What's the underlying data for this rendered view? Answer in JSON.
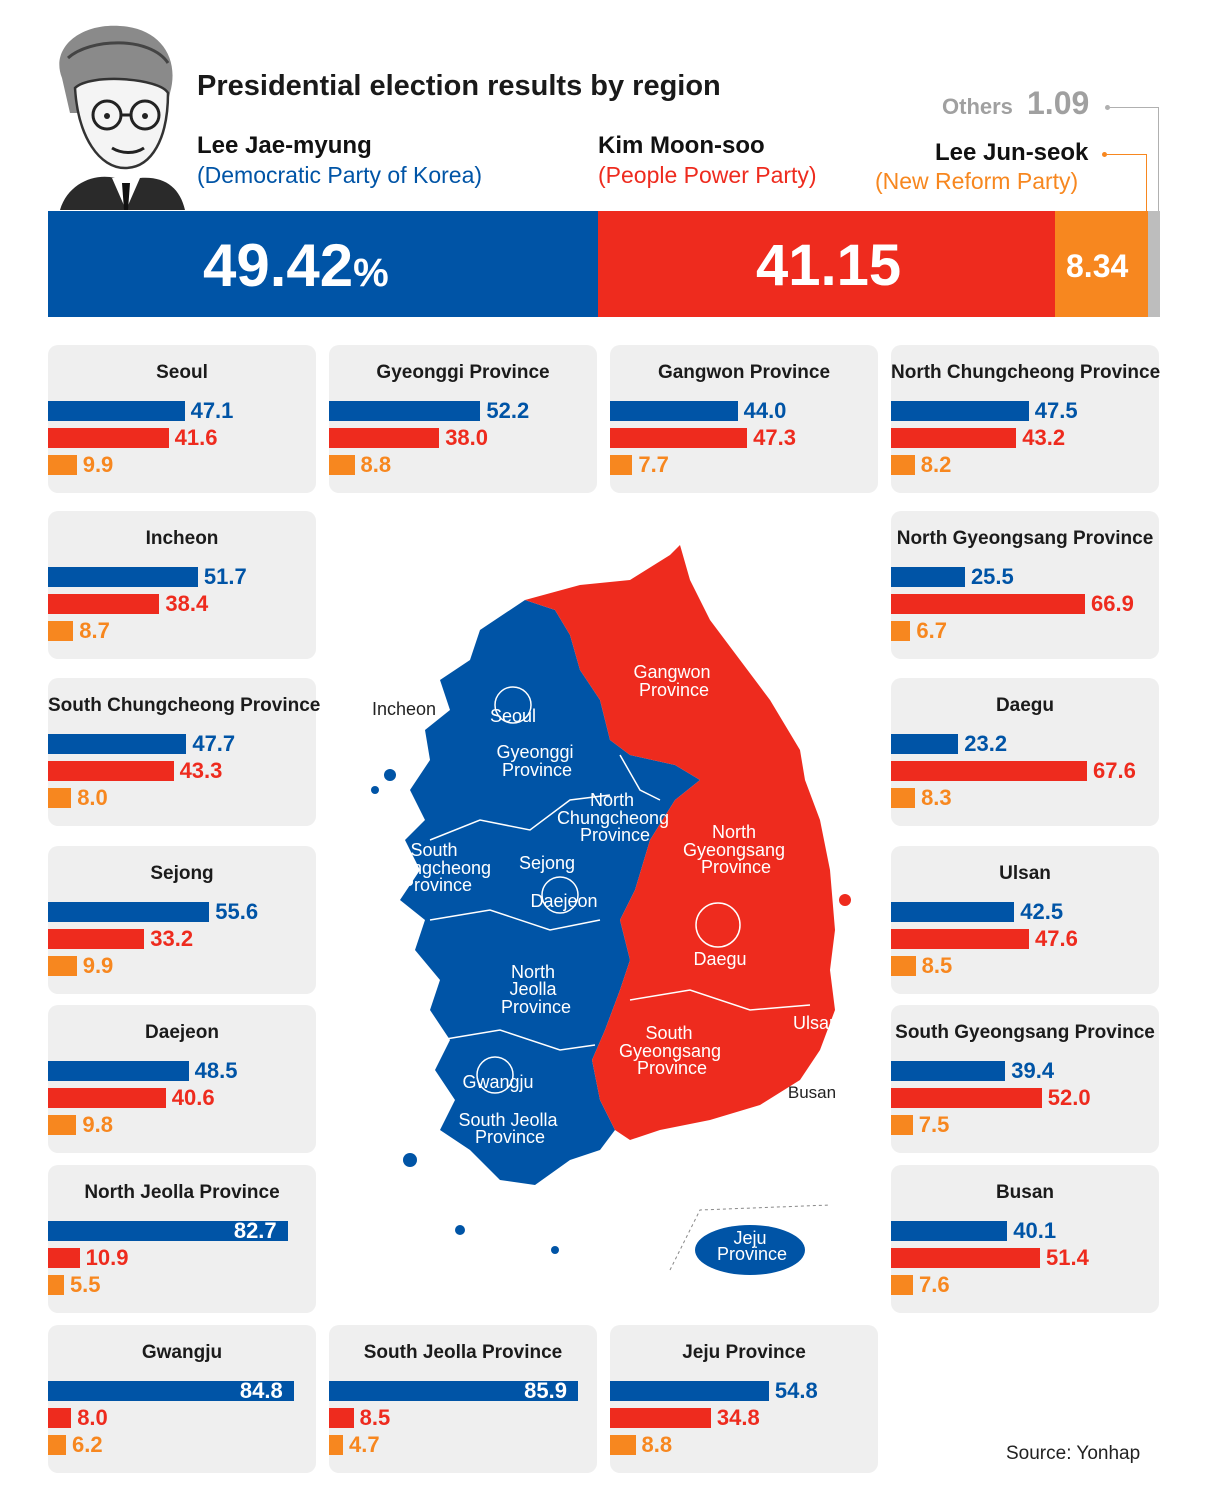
{
  "header": {
    "title": "Presidential election results by region",
    "candidates": [
      {
        "name": "Lee Jae-myung",
        "party": "(Democratic Party of Korea)"
      },
      {
        "name": "Kim Moon-soo",
        "party": "(People Power Party)"
      },
      {
        "name": "Lee Jun-seok",
        "party": "(New Reform Party)"
      }
    ],
    "others_label": "Others",
    "others_value": "1.09"
  },
  "colors": {
    "lee_jm": "#0054a6",
    "kim_ms": "#ee2b1e",
    "lee_js": "#f7871f",
    "others": "#bdbdbd",
    "card": "#efefef"
  },
  "total": {
    "lee_jm": "49.42",
    "lee_jm_unit": "%",
    "kim_ms": "41.15",
    "lee_js": "8.34"
  },
  "map_labels": {
    "seoul": "Seoul",
    "incheon": "Incheon",
    "gyeonggi": [
      "Gyeonggi",
      "Province"
    ],
    "gangwon": [
      "Gangwon",
      "Province"
    ],
    "north_chungcheong": [
      "North",
      "Chungcheong",
      "Province"
    ],
    "south_chungcheong": [
      "South",
      "Chungcheong",
      "Province"
    ],
    "sejong": "Sejong",
    "daejeon": "Daejeon",
    "north_gyeongsang": [
      "North",
      "Gyeongsang",
      "Province"
    ],
    "daegu": "Daegu",
    "north_jeolla": [
      "North",
      "Jeolla",
      "Province"
    ],
    "south_gyeongsang": [
      "South",
      "Gyeongsang",
      "Province"
    ],
    "ulsan": "Ulsan",
    "busan": "Busan",
    "gwangju": "Gwangju",
    "south_jeolla": [
      "South Jeolla",
      "Province"
    ],
    "jeju": [
      "Jeju",
      "Province"
    ]
  },
  "source": "Source:  Yonhap",
  "chart_data": {
    "type": "bar",
    "title": "Presidential election results by region",
    "unit": "%",
    "series_names": [
      "Lee Jae-myung",
      "Kim Moon-soo",
      "Lee Jun-seok"
    ],
    "national": {
      "Lee Jae-myung": 49.42,
      "Kim Moon-soo": 41.15,
      "Lee Jun-seok": 8.34,
      "Others": 1.09
    },
    "regions": [
      {
        "name": "Seoul",
        "values": [
          47.1,
          41.6,
          9.9
        ]
      },
      {
        "name": "Gyeonggi Province",
        "values": [
          52.2,
          38.0,
          8.8
        ]
      },
      {
        "name": "Gangwon Province",
        "values": [
          44.0,
          47.3,
          7.7
        ]
      },
      {
        "name": "North Chungcheong Province",
        "values": [
          47.5,
          43.2,
          8.2
        ]
      },
      {
        "name": "Incheon",
        "values": [
          51.7,
          38.4,
          8.7
        ]
      },
      {
        "name": "North Gyeongsang Province",
        "values": [
          25.5,
          66.9,
          6.7
        ]
      },
      {
        "name": "South Chungcheong Province",
        "values": [
          47.7,
          43.3,
          8.0
        ]
      },
      {
        "name": "Daegu",
        "values": [
          23.2,
          67.6,
          8.3
        ]
      },
      {
        "name": "Sejong",
        "values": [
          55.6,
          33.2,
          9.9
        ]
      },
      {
        "name": "Ulsan",
        "values": [
          42.5,
          47.6,
          8.5
        ]
      },
      {
        "name": "Daejeon",
        "values": [
          48.5,
          40.6,
          9.8
        ]
      },
      {
        "name": "South Gyeongsang Province",
        "values": [
          39.4,
          52.0,
          7.5
        ]
      },
      {
        "name": "North Jeolla Province",
        "values": [
          82.7,
          10.9,
          5.5
        ]
      },
      {
        "name": "Busan",
        "values": [
          40.1,
          51.4,
          7.6
        ]
      },
      {
        "name": "Gwangju",
        "values": [
          84.8,
          8.0,
          6.2
        ]
      },
      {
        "name": "South Jeolla Province",
        "values": [
          85.9,
          8.5,
          4.7
        ]
      },
      {
        "name": "Jeju Province",
        "values": [
          54.8,
          34.8,
          8.8
        ]
      }
    ]
  }
}
